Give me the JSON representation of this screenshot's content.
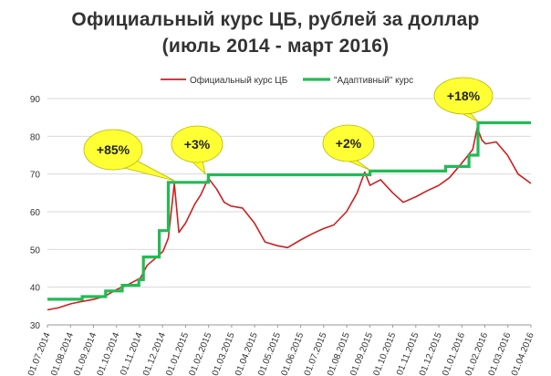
{
  "chart_data": {
    "type": "line",
    "title_lines": [
      "Официальный курс ЦБ, рублей за доллар",
      "(июль 2014 - март 2016)"
    ],
    "xlabel": "",
    "ylabel": "",
    "ylim": [
      30,
      90
    ],
    "yticks": [
      30,
      40,
      50,
      60,
      70,
      80,
      90
    ],
    "grid": "horizontal",
    "legend_position": "top",
    "xlim": [
      "2014-07-01",
      "2016-04-01"
    ],
    "x_tick_labels": [
      "01.07.2014",
      "01.08.2014",
      "01.09.2014",
      "01.10.2014",
      "01.11.2014",
      "01.12.2014",
      "01.01.2015",
      "01.02.2015",
      "01.03.2015",
      "01.04.2015",
      "01.05.2015",
      "01.06.2015",
      "01.07.2015",
      "01.08.2015",
      "01.09.2015",
      "01.10.2015",
      "01.11.2015",
      "01.12.2015",
      "01.01.2016",
      "01.02.2016",
      "01.03.2016",
      "01.04.2016"
    ],
    "series": [
      {
        "name": "Официальный курс ЦБ",
        "color": "#cc2020",
        "points": [
          [
            "2014-07-01",
            34.0
          ],
          [
            "2014-07-15",
            34.5
          ],
          [
            "2014-08-01",
            35.6
          ],
          [
            "2014-08-15",
            36.2
          ],
          [
            "2014-09-01",
            36.8
          ],
          [
            "2014-09-15",
            37.6
          ],
          [
            "2014-10-01",
            39.4
          ],
          [
            "2014-10-15",
            40.6
          ],
          [
            "2014-11-01",
            42.4
          ],
          [
            "2014-11-10",
            45.8
          ],
          [
            "2014-11-20",
            47.5
          ],
          [
            "2014-12-01",
            49.5
          ],
          [
            "2014-12-08",
            53.0
          ],
          [
            "2014-12-16",
            67.5
          ],
          [
            "2014-12-22",
            54.5
          ],
          [
            "2014-12-31",
            57.0
          ],
          [
            "2015-01-12",
            62.0
          ],
          [
            "2015-01-20",
            64.5
          ],
          [
            "2015-01-30",
            68.9
          ],
          [
            "2015-02-10",
            66.0
          ],
          [
            "2015-02-20",
            62.5
          ],
          [
            "2015-03-01",
            61.5
          ],
          [
            "2015-03-16",
            61.0
          ],
          [
            "2015-04-01",
            57.0
          ],
          [
            "2015-04-15",
            52.0
          ],
          [
            "2015-05-01",
            51.0
          ],
          [
            "2015-05-15",
            50.5
          ],
          [
            "2015-06-01",
            52.5
          ],
          [
            "2015-06-15",
            54.0
          ],
          [
            "2015-07-01",
            55.5
          ],
          [
            "2015-07-15",
            56.5
          ],
          [
            "2015-08-01",
            60.0
          ],
          [
            "2015-08-15",
            65.0
          ],
          [
            "2015-08-25",
            70.5
          ],
          [
            "2015-09-01",
            67.0
          ],
          [
            "2015-09-15",
            68.5
          ],
          [
            "2015-10-01",
            65.0
          ],
          [
            "2015-10-15",
            62.5
          ],
          [
            "2015-11-01",
            64.0
          ],
          [
            "2015-11-15",
            65.5
          ],
          [
            "2015-12-01",
            67.0
          ],
          [
            "2015-12-15",
            69.0
          ],
          [
            "2016-01-01",
            73.0
          ],
          [
            "2016-01-15",
            76.5
          ],
          [
            "2016-01-21",
            82.3
          ],
          [
            "2016-01-27",
            79.0
          ],
          [
            "2016-02-01",
            78.0
          ],
          [
            "2016-02-15",
            78.5
          ],
          [
            "2016-03-01",
            75.0
          ],
          [
            "2016-03-15",
            70.0
          ],
          [
            "2016-04-01",
            67.5
          ]
        ]
      },
      {
        "name": "\"Адаптивный\" курс",
        "color": "#22bb55",
        "points": [
          [
            "2014-07-01",
            36.8
          ],
          [
            "2014-08-16",
            36.8
          ],
          [
            "2014-08-16",
            37.5
          ],
          [
            "2014-09-16",
            37.5
          ],
          [
            "2014-09-16",
            39.0
          ],
          [
            "2014-10-08",
            39.0
          ],
          [
            "2014-10-08",
            40.5
          ],
          [
            "2014-10-30",
            40.5
          ],
          [
            "2014-10-30",
            42.0
          ],
          [
            "2014-11-05",
            42.0
          ],
          [
            "2014-11-05",
            48.0
          ],
          [
            "2014-11-26",
            48.0
          ],
          [
            "2014-11-26",
            55.0
          ],
          [
            "2014-12-08",
            55.0
          ],
          [
            "2014-12-08",
            67.8
          ],
          [
            "2015-01-30",
            67.8
          ],
          [
            "2015-01-30",
            69.8
          ],
          [
            "2015-09-01",
            69.8
          ],
          [
            "2015-09-01",
            70.8
          ],
          [
            "2015-12-10",
            70.8
          ],
          [
            "2015-12-10",
            72.0
          ],
          [
            "2016-01-10",
            72.0
          ],
          [
            "2016-01-10",
            75.0
          ],
          [
            "2016-01-22",
            75.0
          ],
          [
            "2016-01-22",
            83.6
          ],
          [
            "2016-04-01",
            83.6
          ]
        ]
      }
    ],
    "annotations": [
      {
        "text": "+85%",
        "shape": "callout",
        "color": "#ffff33",
        "anchor": [
          "2014-12-16",
          68.0
        ]
      },
      {
        "text": "+3%",
        "shape": "callout",
        "color": "#ffff33",
        "anchor": [
          "2015-01-26",
          69.8
        ]
      },
      {
        "text": "+2%",
        "shape": "callout",
        "color": "#ffff33",
        "anchor": [
          "2015-09-01",
          70.8
        ]
      },
      {
        "text": "+18%",
        "shape": "callout",
        "color": "#ffff33",
        "anchor": [
          "2016-01-22",
          83.6
        ]
      }
    ]
  }
}
